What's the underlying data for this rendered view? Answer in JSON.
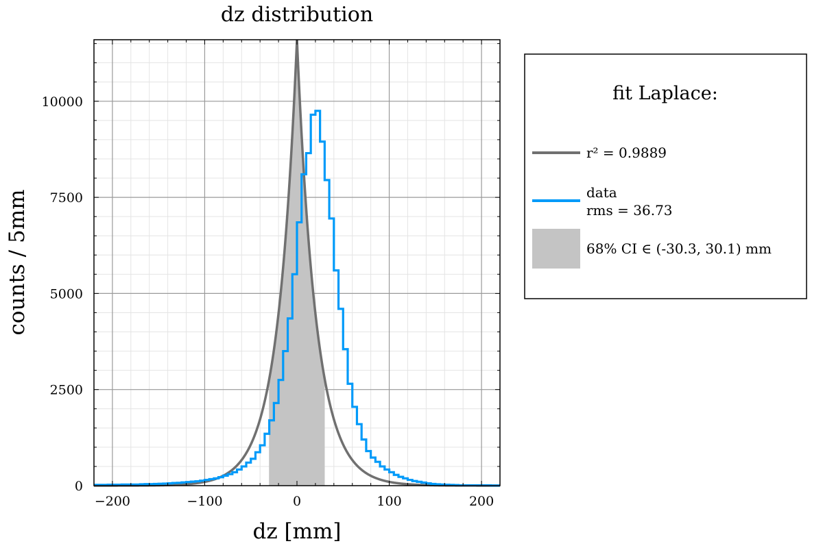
{
  "chart_data": {
    "type": "bar",
    "title": "dz distribution",
    "xlabel": "dz [mm]",
    "ylabel": "counts / 5mm",
    "xlim": [
      -220,
      220
    ],
    "ylim": [
      0,
      11600
    ],
    "x_ticks": [
      -200,
      -100,
      0,
      100,
      200
    ],
    "x_tick_labels": [
      "−200",
      "−100",
      "0",
      "100",
      "200"
    ],
    "y_ticks": [
      0,
      2500,
      5000,
      7500,
      10000
    ],
    "y_tick_labels": [
      "0",
      "2500",
      "5000",
      "7500",
      "10000"
    ],
    "grid": true,
    "legend_position": "outside-right",
    "legend_title": "fit Laplace:",
    "series": [
      {
        "name": "data",
        "kind": "step-histogram",
        "color": "#009AF9",
        "bin_width": 5,
        "bin_edges_start": -220,
        "counts": [
          20,
          20,
          20,
          25,
          25,
          25,
          30,
          30,
          30,
          30,
          35,
          40,
          40,
          45,
          50,
          55,
          60,
          70,
          75,
          85,
          95,
          105,
          115,
          130,
          150,
          170,
          190,
          220,
          260,
          300,
          350,
          420,
          500,
          600,
          700,
          870,
          1050,
          1350,
          1700,
          2150,
          2750,
          3500,
          4350,
          5500,
          6850,
          8100,
          8650,
          9650,
          9750,
          8950,
          7950,
          6950,
          5600,
          4600,
          3550,
          2650,
          2050,
          1600,
          1200,
          900,
          730,
          620,
          500,
          420,
          350,
          280,
          230,
          190,
          150,
          120,
          100,
          80,
          60,
          45,
          35,
          30,
          25,
          20,
          15,
          10,
          10,
          10,
          10,
          10,
          10,
          10,
          5,
          5
        ]
      },
      {
        "name": "fit",
        "kind": "laplace-curve",
        "color": "#707070",
        "peak": 11600,
        "center": 0,
        "scale": 21
      },
      {
        "name": "68% CI",
        "kind": "band",
        "color": "#C4C4C4",
        "range": [
          -30.3,
          30.1
        ]
      }
    ],
    "legend": [
      {
        "label": "r² = 0.9889",
        "symbol": "line",
        "color": "#707070"
      },
      {
        "label": "data",
        "label2": "rms = 36.73",
        "symbol": "line",
        "color": "#009AF9"
      },
      {
        "label": "68% CI ∈ (-30.3, 30.1) mm",
        "symbol": "patch",
        "color": "#C4C4C4"
      }
    ]
  }
}
